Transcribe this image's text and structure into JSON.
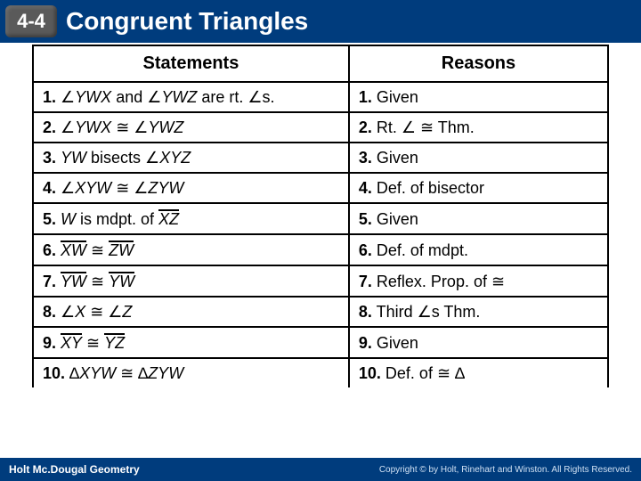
{
  "header": {
    "badge": "4-4",
    "title": "Congruent Triangles",
    "bg_color": "#003c7d",
    "badge_color": "#5a5a5a",
    "text_color": "#ffffff"
  },
  "table": {
    "col_statements": "Statements",
    "col_reasons": "Reasons",
    "border_color": "#000000",
    "header_fontsize": 20,
    "cell_fontsize": 18,
    "rows": {
      "r1": {
        "stmt_num": "1.",
        "stmt_a": "∠",
        "stmt_b": "YWX",
        "stmt_c": " and ∠",
        "stmt_d": "YWZ",
        "stmt_e": " are rt. ∠s.",
        "rsn_num": "1.",
        "rsn": " Given"
      },
      "r2": {
        "stmt_num": "2.",
        "stmt_a": "∠",
        "stmt_b": "YWX",
        "stmt_c": " ≅ ∠",
        "stmt_d": "YWZ",
        "stmt_e": "",
        "rsn_num": "2.",
        "rsn": " Rt. ∠ ≅ Thm."
      },
      "r3": {
        "stmt_num": "3.",
        "stmt_b": "YW",
        "stmt_c": " bisects ∠",
        "stmt_d": "XYZ",
        "rsn_num": "3.",
        "rsn": " Given"
      },
      "r4": {
        "stmt_num": "4.",
        "stmt_a": "∠",
        "stmt_b": "XYW",
        "stmt_c": " ≅ ∠",
        "stmt_d": "ZYW",
        "rsn_num": "4.",
        "rsn": " Def. of bisector"
      },
      "r5": {
        "stmt_num": "5.",
        "stmt_b": "W",
        "stmt_c": " is mdpt. of ",
        "seg1": "XZ",
        "rsn_num": "5.",
        "rsn": " Given"
      },
      "r6": {
        "stmt_num": "6.",
        "seg1": "XW",
        "stmt_c": " ≅ ",
        "seg2": "ZW",
        "rsn_num": "6.",
        "rsn": " Def. of mdpt."
      },
      "r7": {
        "stmt_num": "7.",
        "seg1": "YW",
        "stmt_c": " ≅ ",
        "seg2": "YW",
        "rsn_num": "7.",
        "rsn": " Reflex. Prop. of ≅"
      },
      "r8": {
        "stmt_num": "8.",
        "stmt_a": "∠",
        "stmt_b": "X",
        "stmt_c": " ≅ ∠",
        "stmt_d": "Z",
        "rsn_num": "8.",
        "rsn": " Third ∠s Thm."
      },
      "r9": {
        "stmt_num": "9.",
        "seg1": "XY",
        "stmt_c": " ≅ ",
        "seg2": "YZ",
        "rsn_num": "9.",
        "rsn": " Given"
      },
      "r10": {
        "stmt_num": "10.",
        "stmt_a": "∆",
        "stmt_b": "XYW",
        "stmt_c": " ≅ ∆",
        "stmt_d": "ZYW",
        "rsn_num": "10.",
        "rsn": " Def. of ≅ ∆"
      }
    }
  },
  "footer": {
    "brand": "Holt Mc.Dougal Geometry",
    "copy": "Copyright © by Holt, Rinehart and Winston. All Rights Reserved."
  }
}
